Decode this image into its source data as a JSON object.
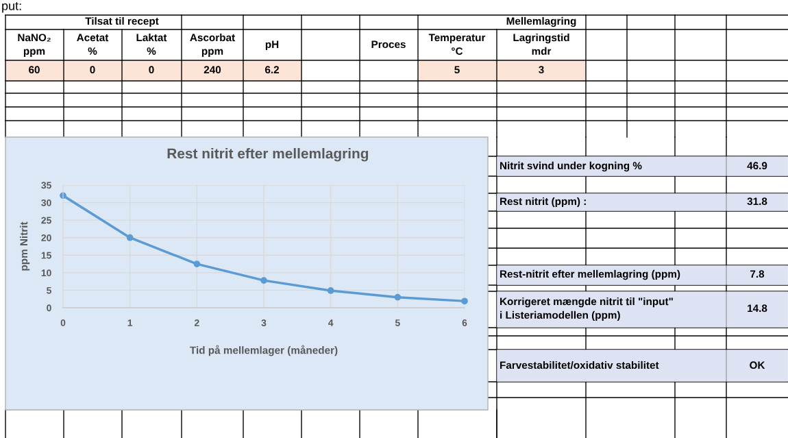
{
  "chart_data": [
    {
      "type": "other",
      "annotations": [
        "put:",
        "Tilsat til recept",
        "Mellemlagring",
        "NaNO₂\nppm",
        "Acetat\n%",
        "Laktat\n%",
        "Ascorbat\nppm",
        "pH",
        "Proces",
        "Temperatur\n°C",
        "Lagringstid\nmdr",
        "60",
        "0",
        "0",
        "240",
        "6.2",
        "5",
        "3",
        "Nitrit svind under kogning %",
        "46.9",
        "Rest nitrit (ppm) :",
        "31.8",
        "Rest-nitrit efter mellemlagring (ppm)",
        "7.8",
        "Korrigeret mængde nitrit til \"input\"\ni Listeriamodellen (ppm)",
        "14.8",
        "Farvestabilitet/oxidativ stabilitet",
        "OK"
      ]
    },
    {
      "type": "line",
      "title": "Rest nitrit efter mellemlagring",
      "xlabel": "Tid på mellemlager (måneder)",
      "ylabel": "ppm Nitrit",
      "x": [
        0,
        1,
        2,
        3,
        4,
        5,
        6
      ],
      "xlim": [
        0,
        6
      ],
      "xticks": [
        0,
        1,
        2,
        3,
        4,
        5,
        6
      ],
      "ylim": [
        0,
        35
      ],
      "yticks": [
        0,
        5,
        10,
        15,
        20,
        25,
        30,
        35
      ],
      "grid": true,
      "marker": "circle",
      "line_style": "solid",
      "series": [
        {
          "color": "#5b9bd5",
          "values": [
            32,
            20,
            12.5,
            7.8,
            4.9,
            3.0,
            1.9
          ]
        }
      ]
    }
  ]
}
